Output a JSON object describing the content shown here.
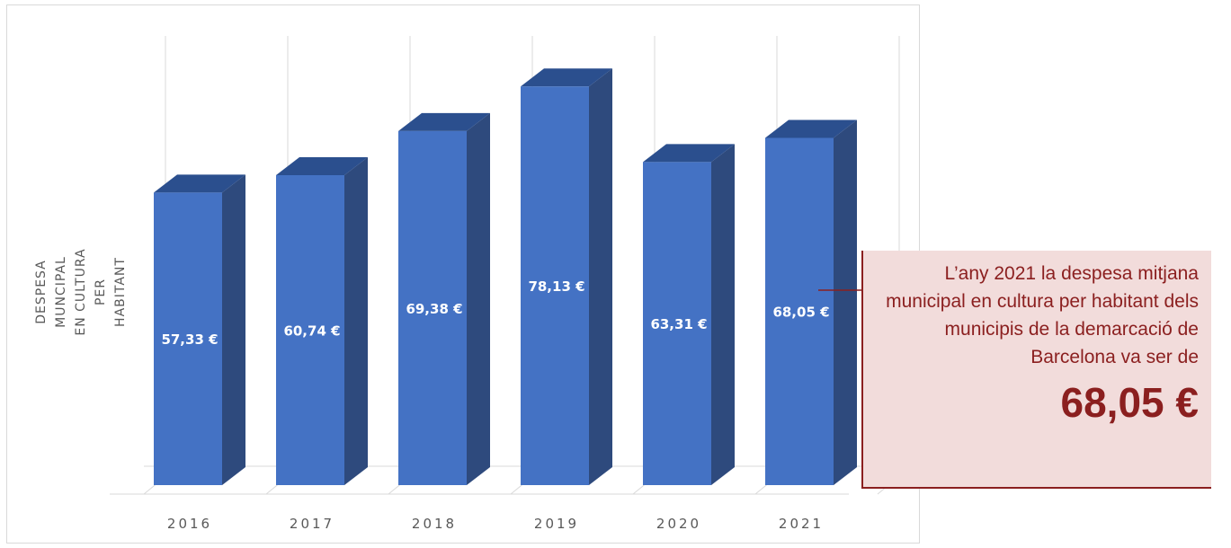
{
  "chart_data": {
    "type": "bar",
    "categories": [
      "2016",
      "2017",
      "2018",
      "2019",
      "2020",
      "2021"
    ],
    "values": [
      57.33,
      60.74,
      69.38,
      78.13,
      63.31,
      68.05
    ],
    "data_labels": [
      "57,33 €",
      "60,74 €",
      "69,38 €",
      "78,13 €",
      "63,31 €",
      "68,05 €"
    ],
    "title": "",
    "xlabel": "",
    "ylabel": "DESPESA MUNCIPAL EN CULTURA PER HABITANT",
    "ylim": [
      0,
      80
    ],
    "grid": "vertical",
    "style": "3d-column",
    "colors": {
      "front": "#4472c4",
      "side": "#2e4a7d",
      "top": "#2b4f8e",
      "label": "#ffffff"
    }
  },
  "callout": {
    "message": "L’any 2021 la despesa mitjana municipal en cultura per habitant dels municipis de la demarcació de Barcelona va ser de",
    "value": "68,05 €",
    "background": "#f2dcdb",
    "text_color": "#8b1f1f"
  }
}
